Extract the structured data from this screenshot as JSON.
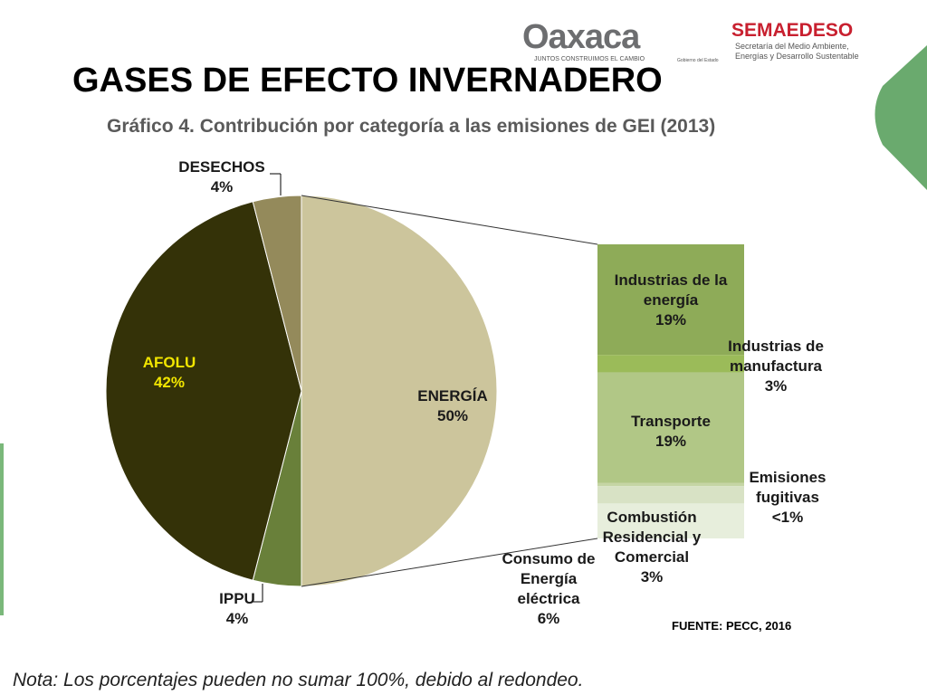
{
  "header": {
    "logo": "Oaxaca",
    "logo_tagline": "JUNTOS CONSTRUIMOS EL CAMBIO",
    "government": "Gobierno del Estado",
    "agency": "SEMAEDESO",
    "agency_name": "Secretaría del Medio Ambiente, Energías y Desarrollo Sustentable"
  },
  "slide_title": "GASES DE EFECTO INVERNADERO",
  "chart_data": {
    "type": "pie",
    "title": "Gráfico 4. Contribución por categoría a las emisiones de GEI (2013)",
    "categories": [
      "ENERGÍA",
      "IPPU",
      "AFOLU",
      "DESECHOS"
    ],
    "values": [
      50,
      4,
      42,
      4
    ],
    "value_labels": [
      "50%",
      "4%",
      "42%",
      "4%"
    ],
    "colors": [
      "#ccc59c",
      "#69803a",
      "#343208",
      "#948a5b"
    ],
    "breakdown": {
      "categories": [
        "Industrias de la energía",
        "Industrias de manufactura",
        "Transporte",
        "Emisiones fugitivas",
        "Combustión Residencial y Comercial",
        "Consumo de Energía eléctrica"
      ],
      "values": [
        19,
        3,
        19,
        0.5,
        3,
        6
      ],
      "value_labels": [
        "19%",
        "3%",
        "19%",
        "<1%",
        "3%",
        "6%"
      ],
      "colors": [
        "#8eab58",
        "#9bbb59",
        "#b1c786",
        "#c5d5a4",
        "#d8e2c5",
        "#e7eedc"
      ]
    },
    "source": "FUENTE: PECC, 2016"
  },
  "note": "Nota: Los porcentajes pueden no sumar 100%, debido al redondeo."
}
